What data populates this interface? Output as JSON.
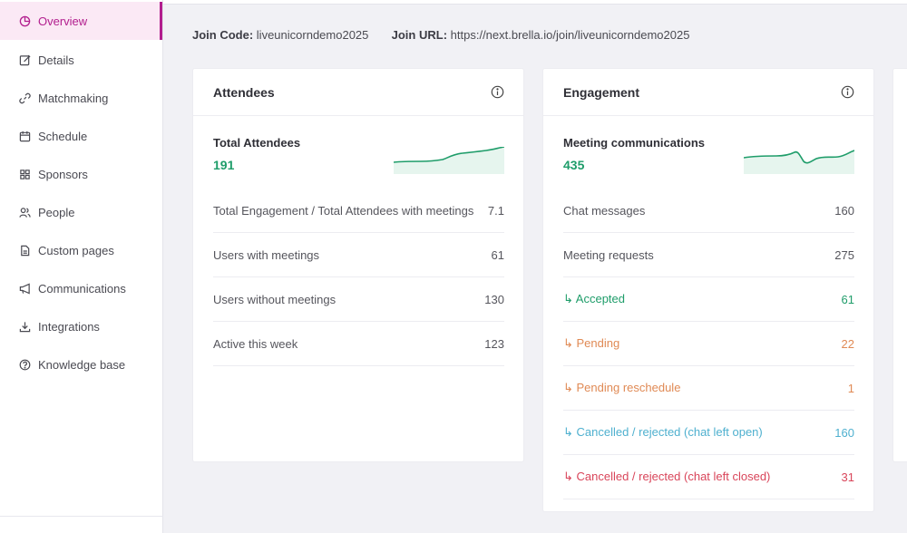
{
  "sidebar": {
    "items": [
      {
        "label": "Overview",
        "icon": "pie-chart-icon"
      },
      {
        "label": "Details",
        "icon": "edit-icon"
      },
      {
        "label": "Matchmaking",
        "icon": "link-icon"
      },
      {
        "label": "Schedule",
        "icon": "calendar-icon"
      },
      {
        "label": "Sponsors",
        "icon": "grid-icon"
      },
      {
        "label": "People",
        "icon": "users-icon"
      },
      {
        "label": "Custom pages",
        "icon": "page-icon"
      },
      {
        "label": "Communications",
        "icon": "megaphone-icon"
      },
      {
        "label": "Integrations",
        "icon": "download-icon"
      },
      {
        "label": "Knowledge base",
        "icon": "help-icon"
      }
    ],
    "active": "Overview",
    "accent": "#b21e8e"
  },
  "join": {
    "code_label": "Join Code:",
    "code_value": "liveunicorndemo2025",
    "url_label": "Join URL:",
    "url_value": "https://next.brella.io/join/liveunicorndemo2025"
  },
  "attendees": {
    "title": "Attendees",
    "stat_label": "Total Attendees",
    "stat_value": "191",
    "rows": [
      {
        "label": "Total Engagement / Total Attendees with meetings",
        "value": "7.1"
      },
      {
        "label": "Users with meetings",
        "value": "61"
      },
      {
        "label": "Users without meetings",
        "value": "130"
      },
      {
        "label": "Active this week",
        "value": "123"
      }
    ]
  },
  "engagement": {
    "title": "Engagement",
    "stat_label": "Meeting communications",
    "stat_value": "435",
    "rows": [
      {
        "label": "Chat messages",
        "value": "160"
      },
      {
        "label": "Meeting requests",
        "value": "275"
      },
      {
        "label": "↳ Accepted",
        "value": "61"
      },
      {
        "label": "↳ Pending",
        "value": "22"
      },
      {
        "label": "↳ Pending reschedule",
        "value": "1"
      },
      {
        "label": "↳ Cancelled / rejected (chat left open)",
        "value": "160"
      },
      {
        "label": "↳ Cancelled / rejected (chat left closed)",
        "value": "31"
      }
    ]
  },
  "colors": {
    "green": "#1f9d6a",
    "orange": "#e08a55",
    "blue": "#4fb0cf",
    "red": "#d9455a"
  }
}
